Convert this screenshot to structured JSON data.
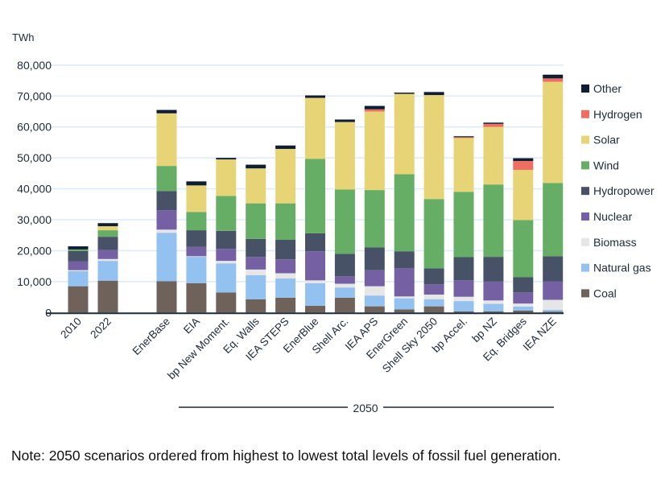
{
  "chart_data": {
    "type": "bar",
    "stacked": true,
    "ylabel": "TWh",
    "ylim": [
      0,
      80000
    ],
    "yticks": [
      "0",
      "10,000",
      "20,000",
      "30,000",
      "40,000",
      "50,000",
      "60,000",
      "70,000",
      "80,000"
    ],
    "grid": true,
    "legend_position": "right",
    "categories": [
      "2010",
      "2022",
      "EnerBase",
      "EIA",
      "bp New Moment.",
      "Eq. Walls",
      "IEA STEPS",
      "EnerBlue",
      "Shell Arc.",
      "IEA APS",
      "EnerGreen",
      "Shell Sky 2050",
      "bp Accel.",
      "bp NZ",
      "Eq. Bridges",
      "IEA NZE"
    ],
    "group_label": "2050",
    "series": [
      {
        "name": "Coal",
        "color": "#6f625b",
        "values": [
          8500,
          10300,
          10100,
          9500,
          6500,
          4300,
          4800,
          2200,
          4800,
          2000,
          1000,
          2000,
          400,
          400,
          600,
          300
        ]
      },
      {
        "name": "Natural gas",
        "color": "#94c2f0",
        "values": [
          4900,
          6400,
          15700,
          8500,
          9400,
          7800,
          6200,
          7300,
          3300,
          3500,
          3600,
          2300,
          3300,
          2400,
          1300,
          600
        ]
      },
      {
        "name": "Biomass",
        "color": "#e6e6e6",
        "values": [
          300,
          600,
          1000,
          200,
          800,
          1800,
          1700,
          900,
          1200,
          3000,
          600,
          1500,
          1400,
          1100,
          1000,
          3200
        ]
      },
      {
        "name": "Nuclear",
        "color": "#7460a3",
        "values": [
          2800,
          2900,
          6300,
          3000,
          3900,
          4100,
          4500,
          9400,
          2400,
          5200,
          9100,
          3300,
          5300,
          6100,
          3600,
          6000
        ]
      },
      {
        "name": "Hydropower",
        "color": "#475266",
        "values": [
          3400,
          4300,
          6200,
          5400,
          5800,
          5800,
          6300,
          5800,
          7300,
          7400,
          5500,
          5200,
          7500,
          8000,
          4900,
          8100
        ]
      },
      {
        "name": "Wind",
        "color": "#66ad66",
        "values": [
          500,
          2100,
          8100,
          5900,
          11300,
          11500,
          11800,
          24100,
          20800,
          18500,
          24900,
          22400,
          21100,
          23400,
          18500,
          23700
        ]
      },
      {
        "name": "Solar",
        "color": "#e6d477",
        "values": [
          0,
          1300,
          17000,
          8600,
          11800,
          11300,
          17600,
          19700,
          21800,
          25400,
          26000,
          33600,
          17400,
          18600,
          16200,
          32700
        ]
      },
      {
        "name": "Hydrogen",
        "color": "#ee6e61",
        "values": [
          0,
          0,
          0,
          0,
          0,
          0,
          0,
          0,
          0,
          700,
          0,
          0,
          300,
          1000,
          2900,
          1100
        ]
      },
      {
        "name": "Other",
        "color": "#0f1e33",
        "values": [
          1000,
          1000,
          1100,
          1300,
          500,
          1200,
          1100,
          800,
          800,
          1100,
          400,
          1000,
          300,
          400,
          900,
          1200
        ]
      }
    ]
  },
  "note": "Note: 2050 scenarios ordered from highest to lowest total levels of fossil fuel generation."
}
